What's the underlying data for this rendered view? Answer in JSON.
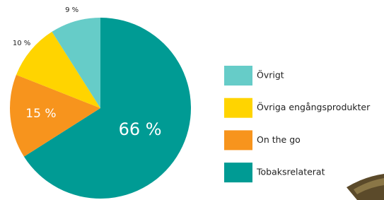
{
  "chart_data": {
    "type": "pie",
    "categories": [
      "Tobaksrelaterat",
      "On the go",
      "Övriga engångsprodukter",
      "Övrigt"
    ],
    "values": [
      66,
      15,
      10,
      9
    ],
    "value_labels": [
      "66 %",
      "15 %",
      "10 %",
      "9 %"
    ],
    "colors": [
      "#009b94",
      "#f7941d",
      "#ffd400",
      "#66ccc8"
    ]
  }
}
